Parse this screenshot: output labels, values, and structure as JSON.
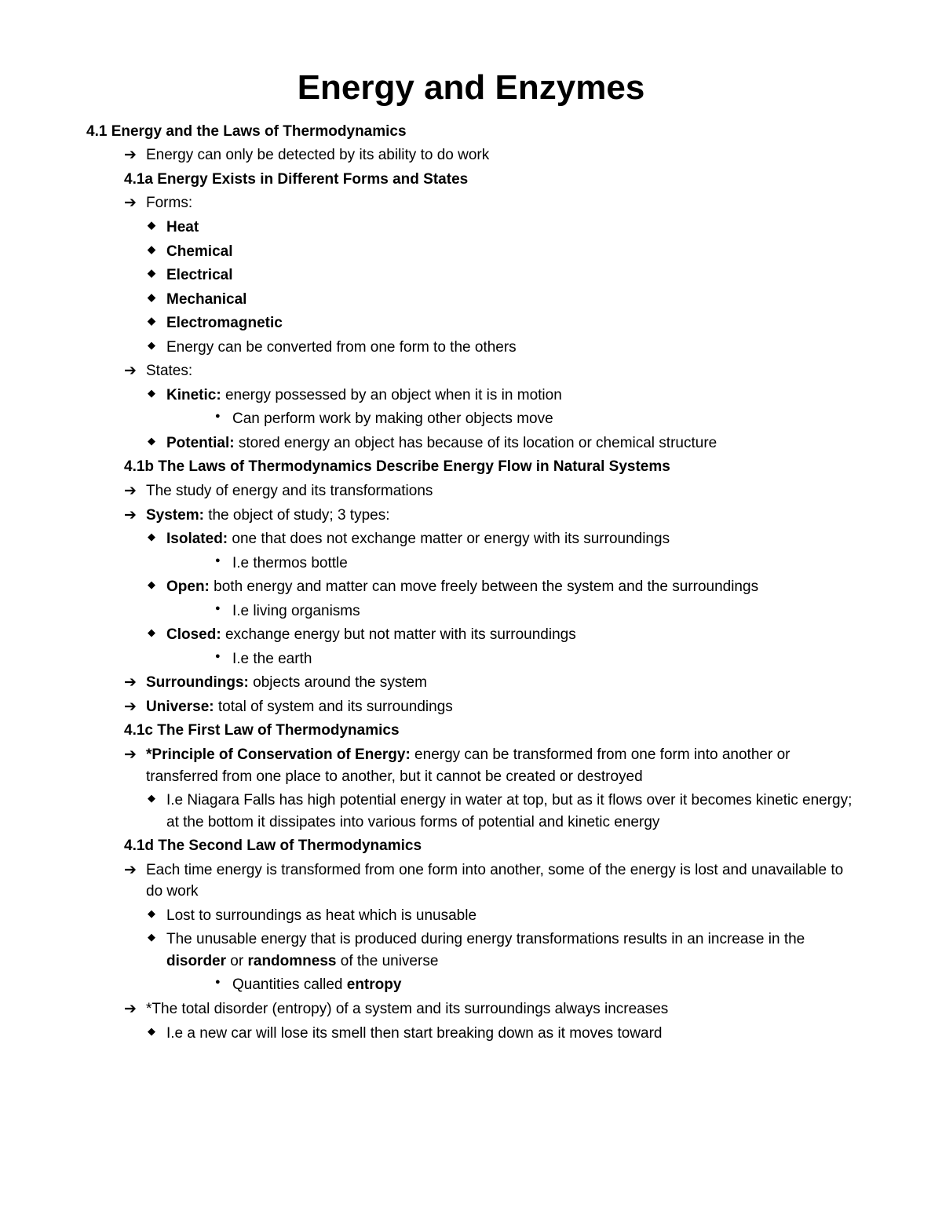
{
  "title": "Energy and Enzymes",
  "h41": "4.1 Energy and the Laws of Thermodynamics",
  "a1": "Energy can only be detected by its ability to do work",
  "h41a": "4.1a Energy Exists in Different Forms and States",
  "forms_label": "Forms:",
  "forms": {
    "f1": "Heat",
    "f2": "Chemical",
    "f3": "Electrical",
    "f4": "Mechanical",
    "f5": "Electromagnetic",
    "f6": "Energy can be converted from one form to the others"
  },
  "states_label": "States:",
  "kinetic_b": "Kinetic:",
  "kinetic_t": " energy possessed by an object when it is in motion",
  "kinetic_sub": "Can perform work by making other objects move",
  "potential_b": "Potential:",
  "potential_t": " stored energy an object has because of its location or chemical structure",
  "h41b": "4.1b The Laws of Thermodynamics Describe Energy Flow in Natural Systems",
  "b1": "The study of energy and its transformations",
  "system_b": "System:",
  "system_t": " the object of study; 3 types:",
  "isolated_b": "Isolated:",
  "isolated_t": " one that does not exchange matter or energy with its surroundings",
  "isolated_eg": "I.e thermos bottle",
  "open_b": "Open:",
  "open_t": " both energy and matter can move freely between the system and the surroundings",
  "open_eg": "I.e living organisms",
  "closed_b": "Closed:",
  "closed_t": " exchange energy but not matter with its surroundings",
  "closed_eg": "I.e the earth",
  "surroundings_b": "Surroundings:",
  "surroundings_t": " objects around the system",
  "universe_b": "Universe:",
  "universe_t": " total of system and its surroundings",
  "h41c": "4.1c The First Law of Thermodynamics",
  "cons_b": "*Principle of Conservation of Energy:",
  "cons_t": " energy can be transformed from one form into another or transferred from one place to another, but it cannot be created or destroyed",
  "cons_eg": "I.e Niagara Falls has high potential energy in water at top, but as it flows over it becomes kinetic energy; at the bottom it dissipates into various forms of potential and kinetic energy",
  "h41d": "4.1d The Second Law of Thermodynamics",
  "d1": "Each time energy is transformed from one form into another, some of the energy is lost and unavailable to do work",
  "d1a": "Lost to surroundings as heat which is unusable",
  "d1b_pre": "The unusable energy that is produced during energy transformations results in an increase in the ",
  "d1b_b1": "disorder",
  "d1b_mid": " or ",
  "d1b_b2": "randomness",
  "d1b_post": " of the universe",
  "d1b_sub_pre": "Quantities called ",
  "d1b_sub_b": "entropy",
  "d2": "*The total disorder (entropy) of a system and its surroundings always increases",
  "d2a": "I.e a new car will lose its smell then start breaking down as it moves toward"
}
